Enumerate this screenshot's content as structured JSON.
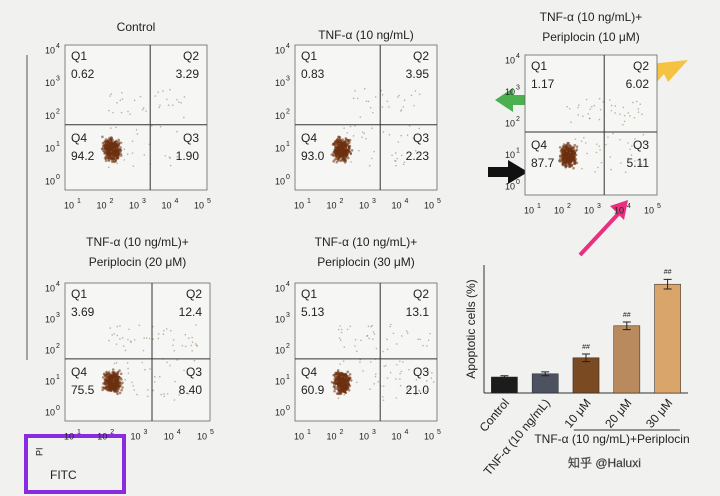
{
  "panels": [
    {
      "title": [
        "Control"
      ],
      "quadrants": {
        "Q1": "0.62",
        "Q2": "3.29",
        "Q3": "1.90",
        "Q4": "94.2"
      }
    },
    {
      "title": [
        "TNF-α (10 ng/mL)"
      ],
      "quadrants": {
        "Q1": "0.83",
        "Q2": "3.95",
        "Q3": "2.23",
        "Q4": "93.0"
      }
    },
    {
      "title": [
        "TNF-α (10 ng/mL)+",
        "Periplocin (10 μM)"
      ],
      "quadrants": {
        "Q1": "1.17",
        "Q2": "6.02",
        "Q3": "5.11",
        "Q4": "87.7"
      }
    },
    {
      "title": [
        "TNF-α (10 ng/mL)+",
        "Periplocin (20 μM)"
      ],
      "quadrants": {
        "Q1": "3.69",
        "Q2": "12.4",
        "Q3": "8.40",
        "Q4": "75.5"
      }
    },
    {
      "title": [
        "TNF-α (10 ng/mL)+",
        "Periplocin (30 μM)"
      ],
      "quadrants": {
        "Q1": "5.13",
        "Q2": "13.1",
        "Q3": "21.0",
        "Q4": "60.9"
      }
    }
  ],
  "quadrant_names": [
    "Q1",
    "Q2",
    "Q3",
    "Q4"
  ],
  "tick_base": "10",
  "x_exponents": [
    "1",
    "2",
    "3",
    "4",
    "5"
  ],
  "y_exponents": [
    "0",
    "1",
    "2",
    "3",
    "4"
  ],
  "axis_labels": {
    "y": "PI",
    "x": "FITC"
  },
  "watermark": "知乎 @Haluxi",
  "chart_data": {
    "type": "bar",
    "ylabel": "Apoptotic cells (%)",
    "categories": [
      "Control",
      "TNF-α (10 ng/mL)",
      "10 μM",
      "20 μM",
      "30 μM"
    ],
    "values": [
      5,
      6,
      11,
      21,
      34
    ],
    "errors": [
      0.4,
      0.6,
      1.2,
      1.2,
      1.5
    ],
    "colors": [
      "#1c1c1c",
      "#4c5260",
      "#7a4a22",
      "#b98a5e",
      "#d9a56a"
    ],
    "significance": [
      null,
      null,
      "##",
      "##",
      "##"
    ],
    "group_label": "TNF-α (10 ng/mL)+Periplocin",
    "ylim": [
      0,
      40
    ]
  }
}
